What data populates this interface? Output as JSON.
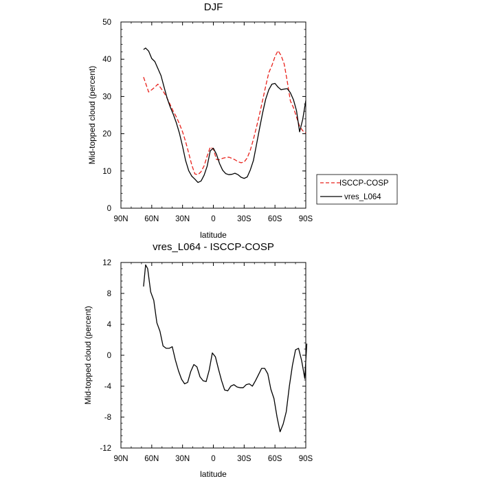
{
  "chart_data": [
    {
      "type": "line",
      "title": "DJF",
      "xlabel": "latitude",
      "ylabel": "Mid-topped cloud (percent)",
      "xlim": [
        -90,
        90
      ],
      "ylim": [
        0,
        50
      ],
      "x_ticks": [
        {
          "value": -90,
          "label": "90N"
        },
        {
          "value": -60,
          "label": "60N"
        },
        {
          "value": -30,
          "label": "30N"
        },
        {
          "value": 0,
          "label": "0"
        },
        {
          "value": 30,
          "label": "30S"
        },
        {
          "value": 60,
          "label": "60S"
        },
        {
          "value": 90,
          "label": "90S"
        }
      ],
      "y_ticks": [
        {
          "value": 0,
          "label": "0"
        },
        {
          "value": 10,
          "label": "10"
        },
        {
          "value": 20,
          "label": "20"
        },
        {
          "value": 30,
          "label": "30"
        },
        {
          "value": 40,
          "label": "40"
        },
        {
          "value": 50,
          "label": "50"
        }
      ],
      "legend": {
        "placement": "right"
      },
      "series": [
        {
          "name": "ISCCP-COSP",
          "color": "#e8201a",
          "dash": "dashed",
          "x": [
            -68,
            -63,
            -60,
            -57,
            -54,
            -51,
            -48,
            -45,
            -42,
            -39,
            -36,
            -33,
            -30,
            -27,
            -24,
            -21,
            -18,
            -15,
            -12,
            -9,
            -6,
            -3,
            0,
            3,
            6,
            9,
            12,
            15,
            18,
            21,
            24,
            27,
            30,
            33,
            36,
            39,
            42,
            45,
            48,
            51,
            54,
            57,
            60,
            63,
            66,
            69,
            72,
            75,
            78,
            81,
            84,
            87,
            90
          ],
          "values": [
            35.2,
            31.2,
            31.8,
            32.5,
            33.3,
            32.2,
            31.0,
            29.5,
            27.8,
            26.0,
            24.5,
            22.6,
            20.5,
            17.9,
            14.8,
            11.6,
            9.2,
            9.0,
            9.8,
            11.4,
            14.0,
            16.4,
            15.9,
            13.1,
            13.0,
            13.4,
            13.6,
            13.7,
            13.4,
            13.0,
            12.5,
            12.2,
            12.4,
            13.5,
            15.6,
            18.5,
            21.8,
            25.3,
            29.0,
            32.8,
            36.4,
            38.3,
            40.7,
            42.3,
            41.0,
            38.7,
            34.0,
            28.8,
            27.0,
            24.5,
            22.0,
            20.8,
            20.2
          ]
        },
        {
          "name": "vres_L064",
          "color": "#000000",
          "dash": "solid",
          "x": [
            -68,
            -66,
            -63,
            -60,
            -57,
            -54,
            -51,
            -48,
            -45,
            -42,
            -39,
            -36,
            -33,
            -30,
            -27,
            -24,
            -21,
            -18,
            -15,
            -12,
            -9,
            -6,
            -3,
            0,
            3,
            6,
            9,
            12,
            15,
            18,
            21,
            24,
            27,
            30,
            33,
            36,
            39,
            42,
            45,
            48,
            51,
            54,
            57,
            60,
            63,
            66,
            69,
            72,
            75,
            78,
            81,
            84,
            87,
            90
          ],
          "values": [
            42.6,
            43.0,
            42.2,
            40.2,
            39.4,
            37.5,
            35.6,
            32.5,
            29.5,
            27.2,
            25.2,
            22.9,
            20.1,
            16.6,
            12.8,
            10.1,
            8.6,
            7.8,
            6.9,
            7.3,
            8.9,
            11.3,
            15.4,
            16.1,
            14.5,
            12.0,
            10.2,
            9.3,
            9.0,
            9.1,
            9.4,
            9.0,
            8.3,
            8.0,
            8.4,
            10.3,
            12.8,
            17.1,
            21.5,
            25.6,
            29.3,
            31.8,
            33.3,
            33.5,
            32.5,
            31.8,
            32.0,
            32.1,
            31.0,
            29.1,
            26.2,
            20.5,
            23.8,
            28.9
          ]
        }
      ]
    },
    {
      "type": "line",
      "title": "vres_L064 - ISCCP-COSP",
      "xlabel": "latitude",
      "ylabel": "Mid-topped cloud (percent)",
      "xlim": [
        -90,
        90
      ],
      "ylim": [
        -12,
        12
      ],
      "x_ticks": [
        {
          "value": -90,
          "label": "90N"
        },
        {
          "value": -60,
          "label": "60N"
        },
        {
          "value": -30,
          "label": "30N"
        },
        {
          "value": 0,
          "label": "0"
        },
        {
          "value": 30,
          "label": "30S"
        },
        {
          "value": 60,
          "label": "60S"
        },
        {
          "value": 90,
          "label": "90S"
        }
      ],
      "y_ticks": [
        {
          "value": -12,
          "label": "-12"
        },
        {
          "value": -8,
          "label": "-8"
        },
        {
          "value": -4,
          "label": "-4"
        },
        {
          "value": 0,
          "label": "0"
        },
        {
          "value": 4,
          "label": "4"
        },
        {
          "value": 8,
          "label": "8"
        },
        {
          "value": 12,
          "label": "12"
        }
      ],
      "series": [
        {
          "color": "#000000",
          "dash": "solid",
          "x": [
            -68,
            -66,
            -64,
            -61,
            -58,
            -55,
            -52,
            -49,
            -46,
            -43,
            -40,
            -37,
            -34,
            -31,
            -28,
            -25,
            -22,
            -19,
            -16,
            -13,
            -10,
            -7,
            -4,
            -1,
            2,
            5,
            8,
            11,
            14,
            17,
            20,
            23,
            26,
            29,
            32,
            35,
            38,
            41,
            44,
            47,
            50,
            53,
            56,
            59,
            62,
            65,
            68,
            71,
            74,
            77,
            80,
            83,
            86,
            89,
            91
          ],
          "values": [
            8.9,
            11.7,
            11.2,
            8.2,
            7.1,
            4.2,
            3.1,
            1.2,
            0.9,
            0.9,
            1.1,
            -0.6,
            -2.0,
            -3.1,
            -3.7,
            -3.5,
            -2.1,
            -1.2,
            -1.5,
            -2.8,
            -3.3,
            -3.4,
            -1.9,
            0.3,
            -0.2,
            -1.8,
            -3.3,
            -4.5,
            -4.6,
            -4.0,
            -3.8,
            -4.1,
            -4.2,
            -4.2,
            -3.8,
            -3.7,
            -4.0,
            -3.3,
            -2.5,
            -1.7,
            -1.7,
            -2.4,
            -4.4,
            -5.6,
            -8.0,
            -9.9,
            -8.9,
            -7.3,
            -4.0,
            -1.3,
            0.7,
            0.9,
            -0.7,
            -3.0,
            1.5
          ]
        }
      ]
    }
  ]
}
